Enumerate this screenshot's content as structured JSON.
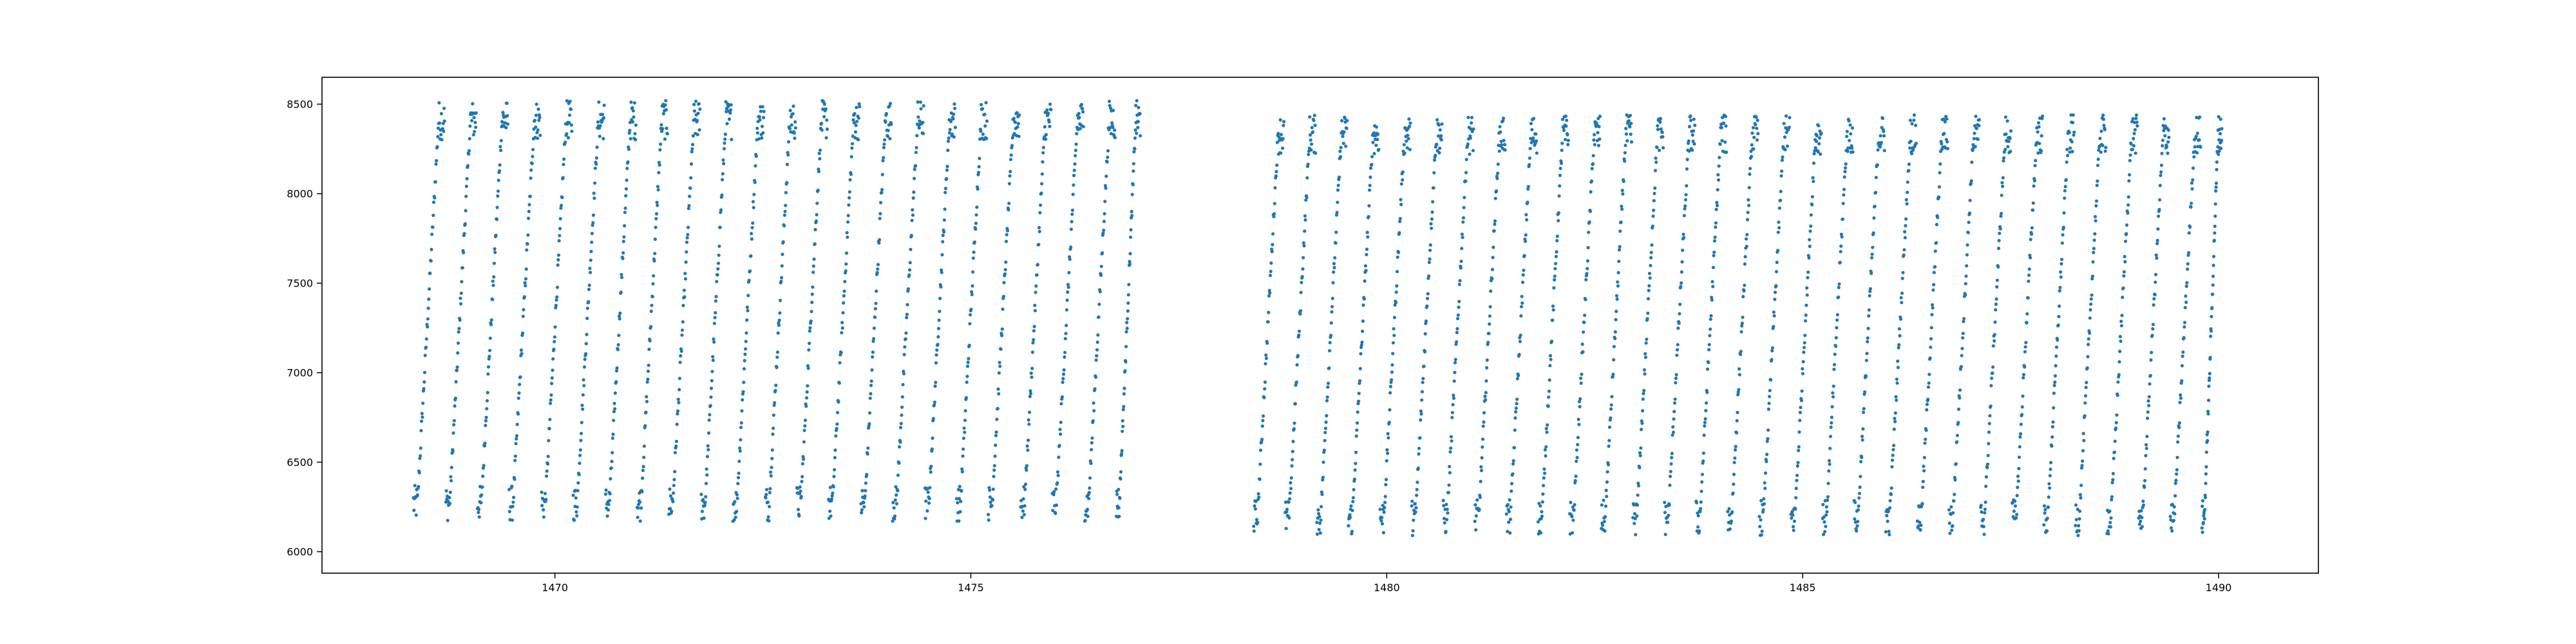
{
  "chart_data": {
    "type": "scatter",
    "title": "",
    "xlabel": "",
    "ylabel": "",
    "xlim": [
      1467.2,
      1491.2
    ],
    "ylim": [
      5880,
      8650
    ],
    "x_ticks": [
      1470,
      1475,
      1480,
      1485,
      1490
    ],
    "x_tick_labels": [
      "1470",
      "1475",
      "1480",
      "1485",
      "1490"
    ],
    "y_ticks": [
      6000,
      6500,
      7000,
      7500,
      8000,
      8500
    ],
    "y_tick_labels": [
      "6000",
      "6500",
      "7000",
      "7500",
      "8000",
      "8500"
    ],
    "grid": false,
    "legend": "none",
    "marker_color": "#1f77b4",
    "marker": "dot",
    "series": [
      {
        "segments": [
          {
            "x_start": 1468.25,
            "x_end": 1477.05,
            "cycles": 23,
            "cycle_start_x": [
              1468.3,
              1468.69,
              1469.07,
              1469.45,
              1469.84,
              1470.22,
              1470.61,
              1470.99,
              1471.37,
              1471.76,
              1472.14,
              1472.53,
              1472.91,
              1473.29,
              1473.68,
              1474.06,
              1474.45,
              1474.83,
              1475.21,
              1475.6,
              1475.98,
              1476.37,
              1476.75
            ],
            "y_min": 6110,
            "y_max": 8520
          },
          {
            "x_start": 1478.3,
            "x_end": 1490.05,
            "cycles": 31,
            "cycle_start_x": [
              1478.4,
              1478.78,
              1479.16,
              1479.54,
              1479.92,
              1480.3,
              1480.68,
              1481.06,
              1481.44,
              1481.82,
              1482.2,
              1482.58,
              1482.96,
              1483.34,
              1483.72,
              1484.1,
              1484.48,
              1484.86,
              1485.24,
              1485.62,
              1486.0,
              1486.38,
              1486.76,
              1487.14,
              1487.52,
              1487.9,
              1488.28,
              1488.66,
              1489.04,
              1489.42,
              1489.8
            ],
            "y_min": 6030,
            "y_max": 8440
          }
        ]
      }
    ]
  }
}
